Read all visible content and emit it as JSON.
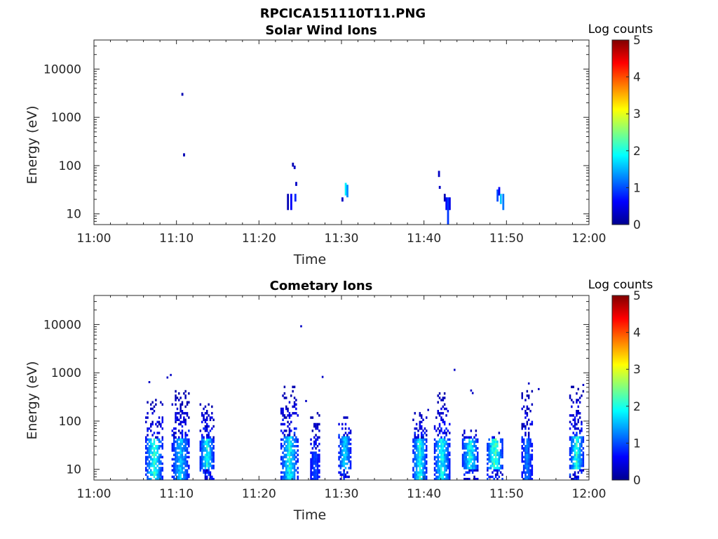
{
  "figure_title": "RPCICA151110T11.PNG",
  "colormap": [
    "#00008f",
    "#0000ff",
    "#0080ff",
    "#00ffff",
    "#80ff80",
    "#ffff00",
    "#ff8000",
    "#ff0000",
    "#800000"
  ],
  "chart_data": [
    {
      "type": "heatmap",
      "title": "Solar Wind Ions",
      "xlabel": "Time",
      "ylabel": "Energy (eV)",
      "x_scale": "time",
      "y_scale": "log",
      "xlim": [
        "11:00",
        "12:00"
      ],
      "ylim": [
        6,
        40000
      ],
      "xticks": [
        "11:00",
        "11:10",
        "11:20",
        "11:30",
        "11:40",
        "11:50",
        "12:00"
      ],
      "yticks": [
        10,
        100,
        1000,
        10000
      ],
      "ytick_labels": [
        "10",
        "100",
        "1000",
        "10000"
      ],
      "colorbar": {
        "label": "Log counts",
        "min": 0,
        "max": 5,
        "ticks": [
          0,
          1,
          2,
          3,
          4,
          5
        ]
      },
      "cells": [
        {
          "t": "11:10.6",
          "e_lo": 2800,
          "e_hi": 3200,
          "v": 0.2
        },
        {
          "t": "11:10.8",
          "e_lo": 155,
          "e_hi": 180,
          "v": 0.2
        },
        {
          "t": "11:23.4",
          "e_lo": 12,
          "e_hi": 26,
          "v": 0.2
        },
        {
          "t": "11:23.8",
          "e_lo": 12,
          "e_hi": 26,
          "v": 0.6
        },
        {
          "t": "11:24.0",
          "e_lo": 95,
          "e_hi": 115,
          "v": 0.2
        },
        {
          "t": "11:24.2",
          "e_lo": 85,
          "e_hi": 100,
          "v": 0.3
        },
        {
          "t": "11:24.3",
          "e_lo": 18,
          "e_hi": 26,
          "v": 0.8
        },
        {
          "t": "11:24.4",
          "e_lo": 38,
          "e_hi": 46,
          "v": 0.3
        },
        {
          "t": "11:30.0",
          "e_lo": 18,
          "e_hi": 22,
          "v": 0.3
        },
        {
          "t": "11:30.4",
          "e_lo": 24,
          "e_hi": 44,
          "v": 1.8
        },
        {
          "t": "11:30.6",
          "e_lo": 22,
          "e_hi": 40,
          "v": 1.3
        },
        {
          "t": "11:41.7",
          "e_lo": 58,
          "e_hi": 78,
          "v": 0.3
        },
        {
          "t": "11:41.8",
          "e_lo": 33,
          "e_hi": 38,
          "v": 0.3
        },
        {
          "t": "11:42.4",
          "e_lo": 18,
          "e_hi": 26,
          "v": 0.2
        },
        {
          "t": "11:42.6",
          "e_lo": 12,
          "e_hi": 22,
          "v": 0.6
        },
        {
          "t": "11:42.8",
          "e_lo": 6,
          "e_hi": 22,
          "v": 0.9
        },
        {
          "t": "11:43.0",
          "e_lo": 12,
          "e_hi": 22,
          "v": 0.5
        },
        {
          "t": "11:48.8",
          "e_lo": 18,
          "e_hi": 32,
          "v": 1.0
        },
        {
          "t": "11:49.0",
          "e_lo": 24,
          "e_hi": 36,
          "v": 0.6
        },
        {
          "t": "11:49.2",
          "e_lo": 16,
          "e_hi": 26,
          "v": 1.6
        },
        {
          "t": "11:49.5",
          "e_lo": 12,
          "e_hi": 26,
          "v": 1.2
        }
      ]
    },
    {
      "type": "heatmap",
      "title": "Cometary Ions",
      "xlabel": "Time",
      "ylabel": "Energy (eV)",
      "x_scale": "time",
      "y_scale": "log",
      "xlim": [
        "11:00",
        "12:00"
      ],
      "ylim": [
        6,
        40000
      ],
      "xticks": [
        "11:00",
        "11:10",
        "11:20",
        "11:30",
        "11:40",
        "11:50",
        "12:00"
      ],
      "yticks": [
        10,
        100,
        1000,
        10000
      ],
      "ytick_labels": [
        "10",
        "100",
        "1000",
        "10000"
      ],
      "colorbar": {
        "label": "Log counts",
        "min": 0,
        "max": 5,
        "ticks": [
          0,
          1,
          2,
          3,
          4,
          5
        ]
      },
      "bursts": [
        {
          "t_start": "11:06.2",
          "t_end": "11:08.4",
          "e_top": 300,
          "core_lo": 6,
          "core_hi": 40,
          "peak": 2.5
        },
        {
          "t_start": "11:09.4",
          "t_end": "11:11.6",
          "e_top": 450,
          "core_lo": 6,
          "core_hi": 40,
          "peak": 1.9
        },
        {
          "t_start": "11:12.8",
          "t_end": "11:14.6",
          "e_top": 260,
          "core_lo": 10,
          "core_hi": 40,
          "peak": 2.3
        },
        {
          "t_start": "11:22.6",
          "t_end": "11:24.8",
          "e_top": 560,
          "core_lo": 6,
          "core_hi": 45,
          "peak": 2.3
        },
        {
          "t_start": "11:26.2",
          "t_end": "11:27.4",
          "e_top": 160,
          "core_lo": 6,
          "core_hi": 22,
          "peak": 1.1
        },
        {
          "t_start": "11:29.6",
          "t_end": "11:31.2",
          "e_top": 150,
          "core_lo": 10,
          "core_hi": 45,
          "peak": 2.0
        },
        {
          "t_start": "11:38.6",
          "t_end": "11:40.4",
          "e_top": 160,
          "core_lo": 6,
          "core_hi": 40,
          "peak": 2.3
        },
        {
          "t_start": "11:41.2",
          "t_end": "11:43.2",
          "e_top": 380,
          "core_lo": 6,
          "core_hi": 40,
          "peak": 2.3
        },
        {
          "t_start": "11:44.6",
          "t_end": "11:46.6",
          "e_top": 70,
          "core_lo": 10,
          "core_hi": 40,
          "peak": 2.4
        },
        {
          "t_start": "11:47.6",
          "t_end": "11:49.6",
          "e_top": 60,
          "core_lo": 10,
          "core_hi": 40,
          "peak": 2.8
        },
        {
          "t_start": "11:51.8",
          "t_end": "11:53.2",
          "e_top": 450,
          "core_lo": 6,
          "core_hi": 40,
          "peak": 1.4
        },
        {
          "t_start": "11:57.6",
          "t_end": "11:59.4",
          "e_top": 540,
          "core_lo": 10,
          "core_hi": 45,
          "peak": 2.4
        }
      ],
      "specks": [
        {
          "t": "11:06.6",
          "e": 640
        },
        {
          "t": "11:08.8",
          "e": 800
        },
        {
          "t": "11:09.2",
          "e": 900
        },
        {
          "t": "11:25.0",
          "e": 9200
        },
        {
          "t": "11:25.6",
          "e": 260
        },
        {
          "t": "11:27.6",
          "e": 820
        },
        {
          "t": "11:40.4",
          "e": 170
        },
        {
          "t": "11:43.6",
          "e": 1150
        },
        {
          "t": "11:45.6",
          "e": 430
        },
        {
          "t": "11:45.8",
          "e": 380
        },
        {
          "t": "11:52.6",
          "e": 600
        },
        {
          "t": "11:53.8",
          "e": 460
        },
        {
          "t": "11:59.2",
          "e": 560
        },
        {
          "t": "12:00.0",
          "e": 35
        }
      ]
    }
  ]
}
